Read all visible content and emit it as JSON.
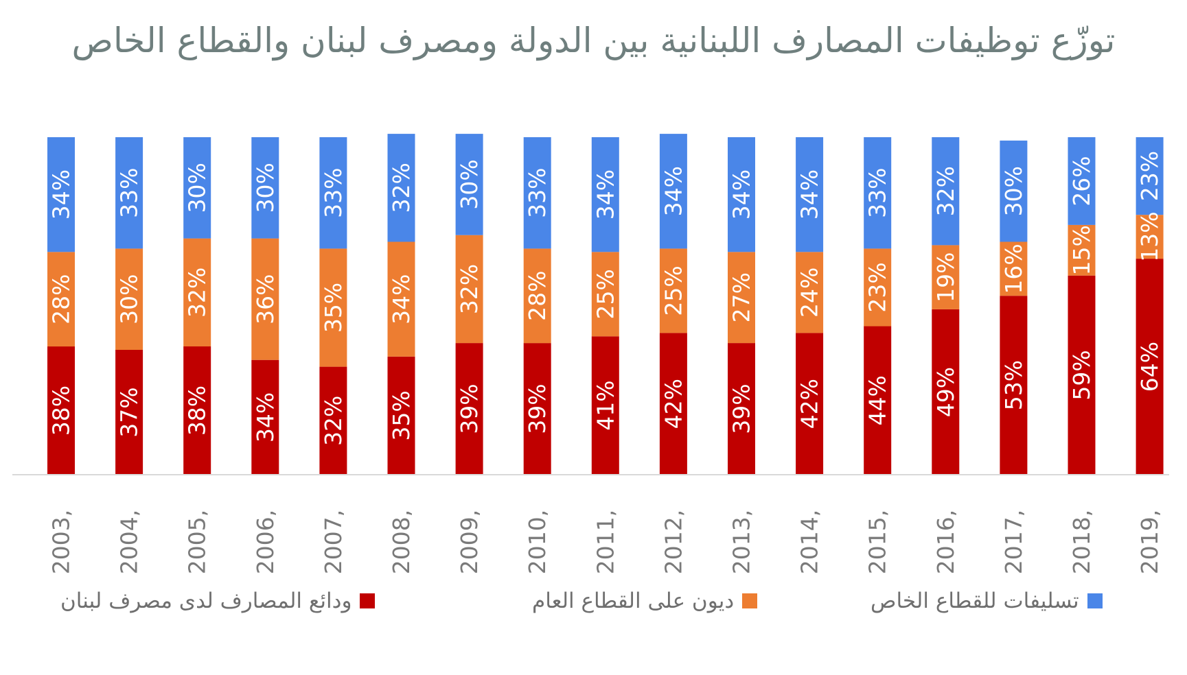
{
  "chart_data": {
    "type": "bar",
    "stacked": true,
    "percent_stacked": true,
    "title": "توزّع توظيفات المصارف اللبنانية بين الدولة ومصرف لبنان والقطاع الخاص",
    "categories": [
      "2003,",
      "2004,",
      "2005,",
      "2006,",
      "2007,",
      "2008,",
      "2009,",
      "2010,",
      "2011,",
      "2012,",
      "2013,",
      "2014,",
      "2015,",
      "2016,",
      "2017,",
      "2018,",
      "2019,"
    ],
    "series": [
      {
        "name": "ودائع المصارف لدى مصرف لبنان",
        "color": "#c00000",
        "values": [
          38,
          37,
          38,
          34,
          32,
          35,
          39,
          39,
          41,
          42,
          39,
          42,
          44,
          49,
          53,
          59,
          64
        ],
        "labels": [
          "38%",
          "37%",
          "38%",
          "34%",
          "32%",
          "35%",
          "39%",
          "39%",
          "41%",
          "42%",
          "39%",
          "42%",
          "44%",
          "49%",
          "53%",
          "59%",
          "64%"
        ]
      },
      {
        "name": "ديون على القطاع العام",
        "color": "#ed7d31",
        "values": [
          28,
          30,
          32,
          36,
          35,
          34,
          32,
          28,
          25,
          25,
          27,
          24,
          23,
          19,
          16,
          15,
          13
        ],
        "labels": [
          "28%",
          "30%",
          "32%",
          "36%",
          "35%",
          "34%",
          "32%",
          "28%",
          "25%",
          "25%",
          "27%",
          "24%",
          "23%",
          "19%",
          "16%",
          "15%",
          "13%"
        ]
      },
      {
        "name": "تسليفات للقطاع الخاص",
        "color": "#4a86e8",
        "values": [
          34,
          33,
          30,
          30,
          33,
          32,
          30,
          33,
          34,
          34,
          34,
          34,
          33,
          32,
          30,
          26,
          23
        ],
        "labels": [
          "34%",
          "33%",
          "30%",
          "30%",
          "33%",
          "32%",
          "30%",
          "33%",
          "34%",
          "34%",
          "34%",
          "34%",
          "33%",
          "32%",
          "30%",
          "26%",
          "23%"
        ]
      }
    ],
    "ylim": [
      0,
      100
    ],
    "xlabel": "",
    "ylabel": "",
    "grid": false,
    "legend_position": "bottom"
  }
}
